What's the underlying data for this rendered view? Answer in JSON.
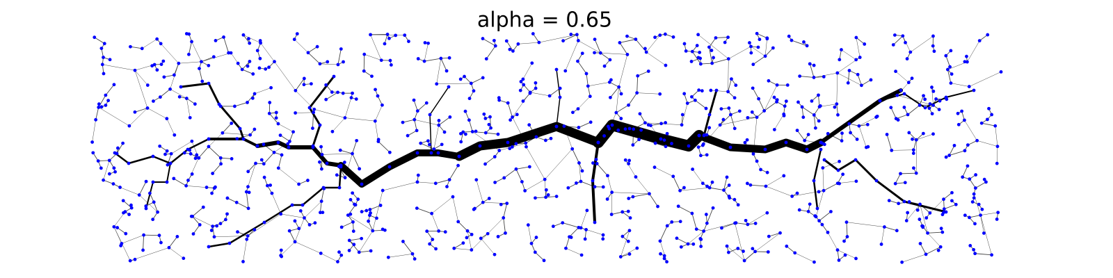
{
  "title": "alpha = 0.65"
}
